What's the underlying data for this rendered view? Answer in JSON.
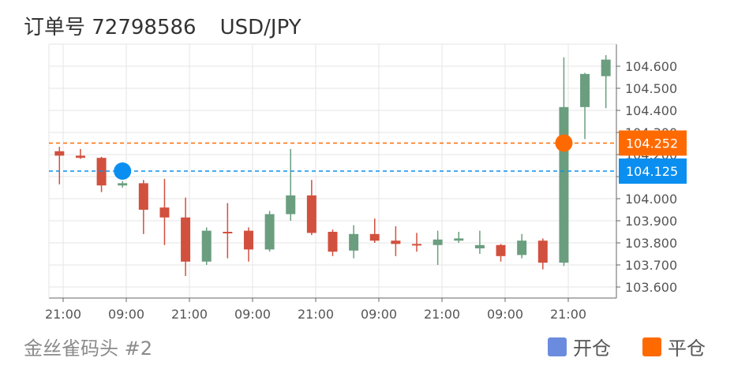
{
  "header": {
    "order_label": "订单号 72798586",
    "symbol": "USD/JPY"
  },
  "footer": {
    "source": "金丝雀码头 #2"
  },
  "legend": [
    {
      "label": "开仓",
      "color": "#6b8cde"
    },
    {
      "label": "平仓",
      "color": "#ff6a00"
    }
  ],
  "colors": {
    "up": "#6a9e7f",
    "down": "#d2503e",
    "open_marker": "#0a8ff0",
    "close_marker": "#ff6a00"
  },
  "chart_data": {
    "type": "candlestick",
    "ylim": [
      103.55,
      104.7
    ],
    "yticks": [
      "103.600",
      "103.700",
      "103.800",
      "103.900",
      "104.000",
      "104.100",
      "104.200",
      "104.300",
      "104.400",
      "104.500",
      "104.600"
    ],
    "xticks": [
      "21:00",
      "09:00",
      "21:00",
      "09:00",
      "21:00",
      "09:00",
      "21:00",
      "09:00",
      "21:00"
    ],
    "grid": true,
    "candles": [
      {
        "o": 104.215,
        "h": 104.235,
        "l": 104.065,
        "c": 104.195
      },
      {
        "o": 104.195,
        "h": 104.225,
        "l": 104.18,
        "c": 104.185
      },
      {
        "o": 104.185,
        "h": 104.19,
        "l": 104.03,
        "c": 104.06
      },
      {
        "o": 104.06,
        "h": 104.08,
        "l": 104.05,
        "c": 104.07
      },
      {
        "o": 104.07,
        "h": 104.085,
        "l": 103.84,
        "c": 103.95
      },
      {
        "o": 103.96,
        "h": 104.09,
        "l": 103.79,
        "c": 103.915
      },
      {
        "o": 103.915,
        "h": 104.005,
        "l": 103.65,
        "c": 103.715
      },
      {
        "o": 103.715,
        "h": 103.87,
        "l": 103.7,
        "c": 103.855
      },
      {
        "o": 103.85,
        "h": 103.98,
        "l": 103.73,
        "c": 103.845
      },
      {
        "o": 103.855,
        "h": 103.87,
        "l": 103.715,
        "c": 103.77
      },
      {
        "o": 103.77,
        "h": 103.945,
        "l": 103.76,
        "c": 103.93
      },
      {
        "o": 103.93,
        "h": 104.225,
        "l": 103.9,
        "c": 104.015
      },
      {
        "o": 104.015,
        "h": 104.085,
        "l": 103.835,
        "c": 103.845
      },
      {
        "o": 103.85,
        "h": 103.86,
        "l": 103.74,
        "c": 103.76
      },
      {
        "o": 103.765,
        "h": 103.88,
        "l": 103.73,
        "c": 103.84
      },
      {
        "o": 103.84,
        "h": 103.91,
        "l": 103.8,
        "c": 103.81
      },
      {
        "o": 103.81,
        "h": 103.875,
        "l": 103.74,
        "c": 103.795
      },
      {
        "o": 103.795,
        "h": 103.845,
        "l": 103.76,
        "c": 103.79
      },
      {
        "o": 103.79,
        "h": 103.855,
        "l": 103.7,
        "c": 103.815
      },
      {
        "o": 103.81,
        "h": 103.85,
        "l": 103.8,
        "c": 103.82
      },
      {
        "o": 103.775,
        "h": 103.855,
        "l": 103.75,
        "c": 103.79
      },
      {
        "o": 103.79,
        "h": 103.795,
        "l": 103.715,
        "c": 103.74
      },
      {
        "o": 103.745,
        "h": 103.84,
        "l": 103.73,
        "c": 103.81
      },
      {
        "o": 103.81,
        "h": 103.82,
        "l": 103.68,
        "c": 103.71
      },
      {
        "o": 103.71,
        "h": 104.64,
        "l": 103.695,
        "c": 104.415
      },
      {
        "o": 104.415,
        "h": 104.57,
        "l": 104.27,
        "c": 104.565
      },
      {
        "o": 104.555,
        "h": 104.65,
        "l": 104.41,
        "c": 104.63
      }
    ],
    "open_price": {
      "label": "104.125",
      "value": 104.125,
      "candle_index": 3
    },
    "close_price": {
      "label": "104.252",
      "value": 104.252,
      "candle_index": 24
    }
  }
}
